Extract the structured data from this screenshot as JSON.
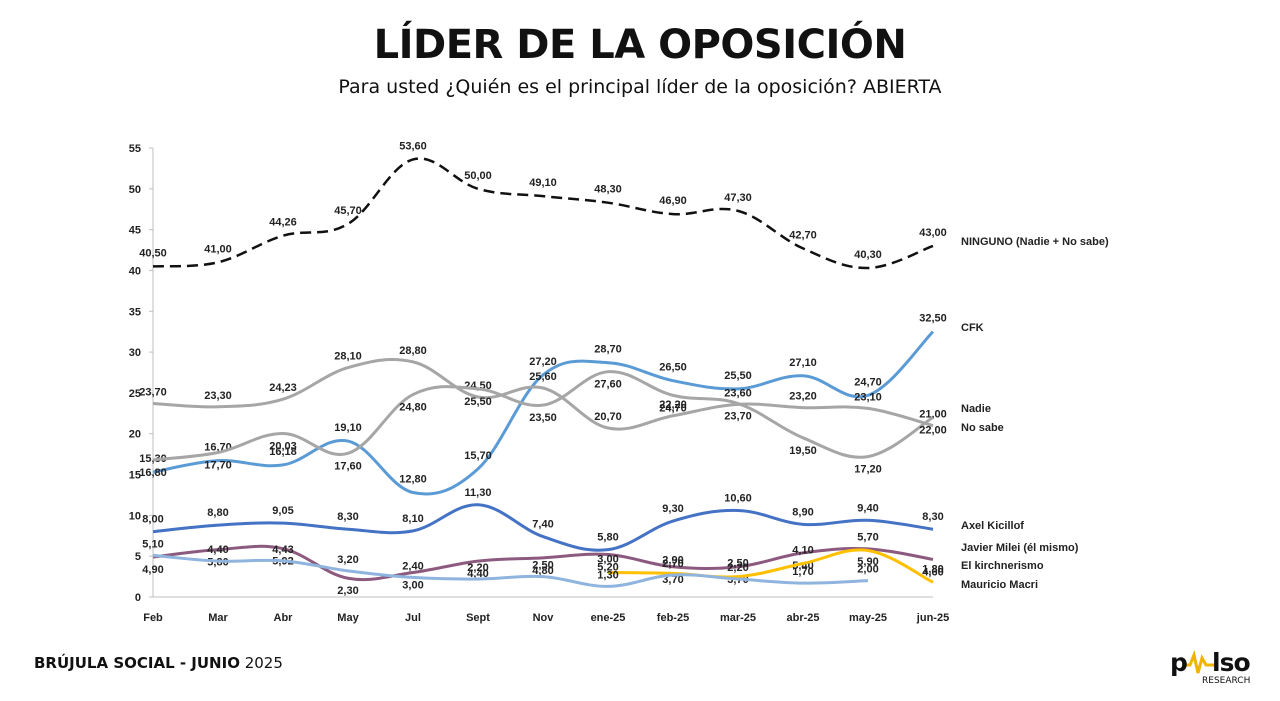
{
  "title": "LÍDER DE LA OPOSICIÓN",
  "subtitle": "Para usted ¿Quién es el principal líder de la oposición? ABIERTA",
  "footer": {
    "bold": "BRÚJULA SOCIAL - JUNIO",
    "normal": " 2025"
  },
  "logo": {
    "word": "pulso",
    "sub": "RESEARCH"
  },
  "chart_data": {
    "type": "line",
    "categories": [
      "Feb",
      "Mar",
      "Abr",
      "May",
      "Jul",
      "Sept",
      "Nov",
      "ene-25",
      "feb-25",
      "mar-25",
      "abr-25",
      "may-25",
      "jun-25"
    ],
    "ylim": [
      0,
      55
    ],
    "yticks": [
      0,
      5,
      10,
      15,
      20,
      25,
      30,
      35,
      40,
      45,
      50,
      55
    ],
    "grid": false,
    "series": [
      {
        "name": "NINGUNO (Nadie + No sabe)",
        "color": "#111111",
        "dashed": true,
        "values": [
          40.5,
          41.0,
          44.26,
          45.7,
          53.6,
          50.0,
          49.1,
          48.3,
          46.9,
          47.3,
          42.7,
          40.3,
          43.0
        ],
        "labels": [
          "40,50",
          "41,00",
          "44,26",
          "45,70",
          "53,60",
          "50,00",
          "49,10",
          "48,30",
          "46,90",
          "47,30",
          "42,70",
          "40,30",
          "43,00"
        ]
      },
      {
        "name": "CFK",
        "color": "#5b9bd5",
        "values": [
          15.3,
          16.7,
          16.18,
          19.1,
          12.8,
          15.7,
          27.2,
          28.7,
          26.5,
          25.5,
          27.1,
          24.7,
          32.5
        ],
        "labels": [
          "15,30",
          "16,70",
          "16,18",
          "19,10",
          "12,80",
          "15,70",
          "27,20",
          "28,70",
          "26,50",
          "25,50",
          "27,10",
          "24,70",
          "32,50"
        ]
      },
      {
        "name": "Nadie",
        "color": "#a6a6a6",
        "values": [
          23.7,
          23.3,
          24.23,
          28.1,
          28.8,
          24.5,
          25.6,
          20.7,
          22.2,
          23.6,
          23.2,
          23.1,
          21.0
        ],
        "labels": [
          "23,70",
          "23,30",
          "24,23",
          "28,10",
          "28,80",
          "24,50",
          "25,60",
          "20,70",
          "22,20",
          "23,60",
          "23,20",
          "23,10",
          "21,00"
        ]
      },
      {
        "name": "No sabe",
        "color": "#a6a6a6",
        "values": [
          16.8,
          17.7,
          20.03,
          17.6,
          24.8,
          25.5,
          23.5,
          27.6,
          24.7,
          23.7,
          19.5,
          17.2,
          22.0
        ],
        "labels": [
          "16,80",
          "17,70",
          "20,03",
          "17,60",
          "24,80",
          "25,50",
          "23,50",
          "27,60",
          "24,70",
          "23,70",
          "19,50",
          "17,20",
          "22,00"
        ]
      },
      {
        "name": "Axel Kicillof",
        "color": "#4472c4",
        "values": [
          8.0,
          8.8,
          9.05,
          8.3,
          8.1,
          11.3,
          7.4,
          5.8,
          9.3,
          10.6,
          8.9,
          9.4,
          8.3
        ],
        "labels": [
          "8,00",
          "8,80",
          "9,05",
          "8,30",
          "8,10",
          "11,30",
          "7,40",
          "5,80",
          "9,30",
          "10,60",
          "8,90",
          "9,40",
          "8,30"
        ]
      },
      {
        "name": "Javier Milei (él mismo)",
        "color": "#8c5a7f",
        "values": [
          4.9,
          5.8,
          5.92,
          2.3,
          3.0,
          4.4,
          4.8,
          5.2,
          3.7,
          3.7,
          5.4,
          5.9,
          4.6
        ],
        "labels": [
          "4,90",
          "5,80",
          "5,92",
          "2,30",
          "3,00",
          "4,40",
          "4,80",
          "5,20",
          "3,70",
          "3,70",
          "5,40",
          "5,90",
          "4,60"
        ]
      },
      {
        "name": "El kirchnerismo",
        "color": "#ffc000",
        "values": [
          null,
          null,
          null,
          null,
          null,
          null,
          null,
          3.0,
          2.9,
          2.5,
          4.1,
          5.7,
          1.8
        ],
        "labels": [
          "",
          "",
          "",
          "",
          "",
          "",
          "",
          "3,00",
          "2,90",
          "2,50",
          "4,10",
          "5,70",
          "1,80"
        ]
      },
      {
        "name": "Mauricio Macri",
        "color": "#8fb4de",
        "values": [
          5.1,
          4.4,
          4.43,
          3.2,
          2.4,
          2.2,
          2.5,
          1.3,
          2.7,
          2.2,
          1.7,
          2.0,
          null
        ],
        "labels": [
          "5,10",
          "4,40",
          "4,43",
          "3,20",
          "2,40",
          "2,20",
          "2,50",
          "1,30",
          "2,70",
          "2,20",
          "1,70",
          "2,00",
          ""
        ]
      }
    ]
  }
}
